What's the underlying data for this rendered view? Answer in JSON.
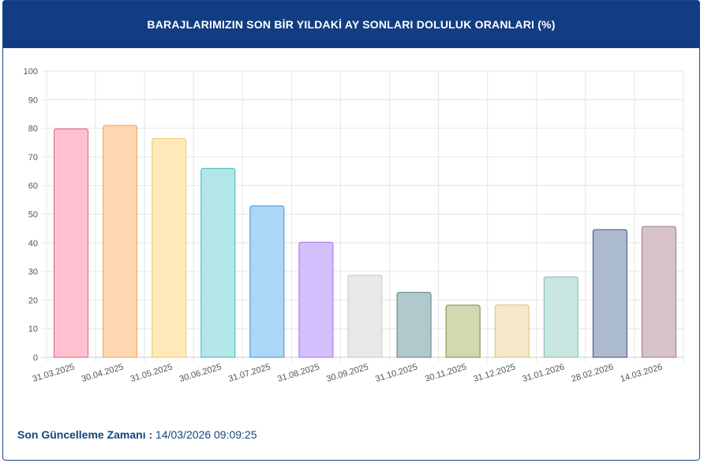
{
  "header": {
    "title": "BARAJLARIMIZIN SON BİR YILDAKİ AY SONLARI DOLULUK ORANLARI (%)"
  },
  "footer": {
    "label": "Son Güncelleme Zamanı :",
    "value": "14/03/2026 09:09:25"
  },
  "chart_data": {
    "type": "bar",
    "title": "BARAJLARIMIZIN SON BİR YILDAKİ AY SONLARI DOLULUK ORANLARI (%)",
    "xlabel": "",
    "ylabel": "",
    "ylim": [
      0,
      100
    ],
    "yticks": [
      0,
      10,
      20,
      30,
      40,
      50,
      60,
      70,
      80,
      90,
      100
    ],
    "grid": true,
    "legend": "none",
    "categories": [
      "31.03.2025",
      "30.04.2025",
      "31.05.2025",
      "30.06.2025",
      "31.07.2025",
      "31.08.2025",
      "30.09.2025",
      "31.10.2025",
      "30.11.2025",
      "31.12.2025",
      "31.01.2026",
      "28.02.2026",
      "14.03.2026"
    ],
    "values": [
      79.8,
      81.0,
      76.4,
      66.0,
      52.9,
      40.2,
      28.7,
      22.7,
      18.2,
      18.3,
      28.1,
      44.6,
      45.7
    ],
    "fill_colors": [
      "#ffc0cf",
      "#fed6b0",
      "#ffe9b8",
      "#b3e6e6",
      "#acd7f6",
      "#d5c0ff",
      "#e7e8ea",
      "#b0c9cc",
      "#d3d8b0",
      "#f5e8c8",
      "#c9e5df",
      "#abbacd",
      "#d6c2c8"
    ],
    "stroke_colors": [
      "#e0617f",
      "#eea35b",
      "#f0c766",
      "#46b7b7",
      "#3c8fd1",
      "#9b6fe0",
      "#c6c8cc",
      "#5b7f86",
      "#7d8641",
      "#d8c27a",
      "#7fbfae",
      "#3e5373",
      "#9e7c86"
    ]
  }
}
